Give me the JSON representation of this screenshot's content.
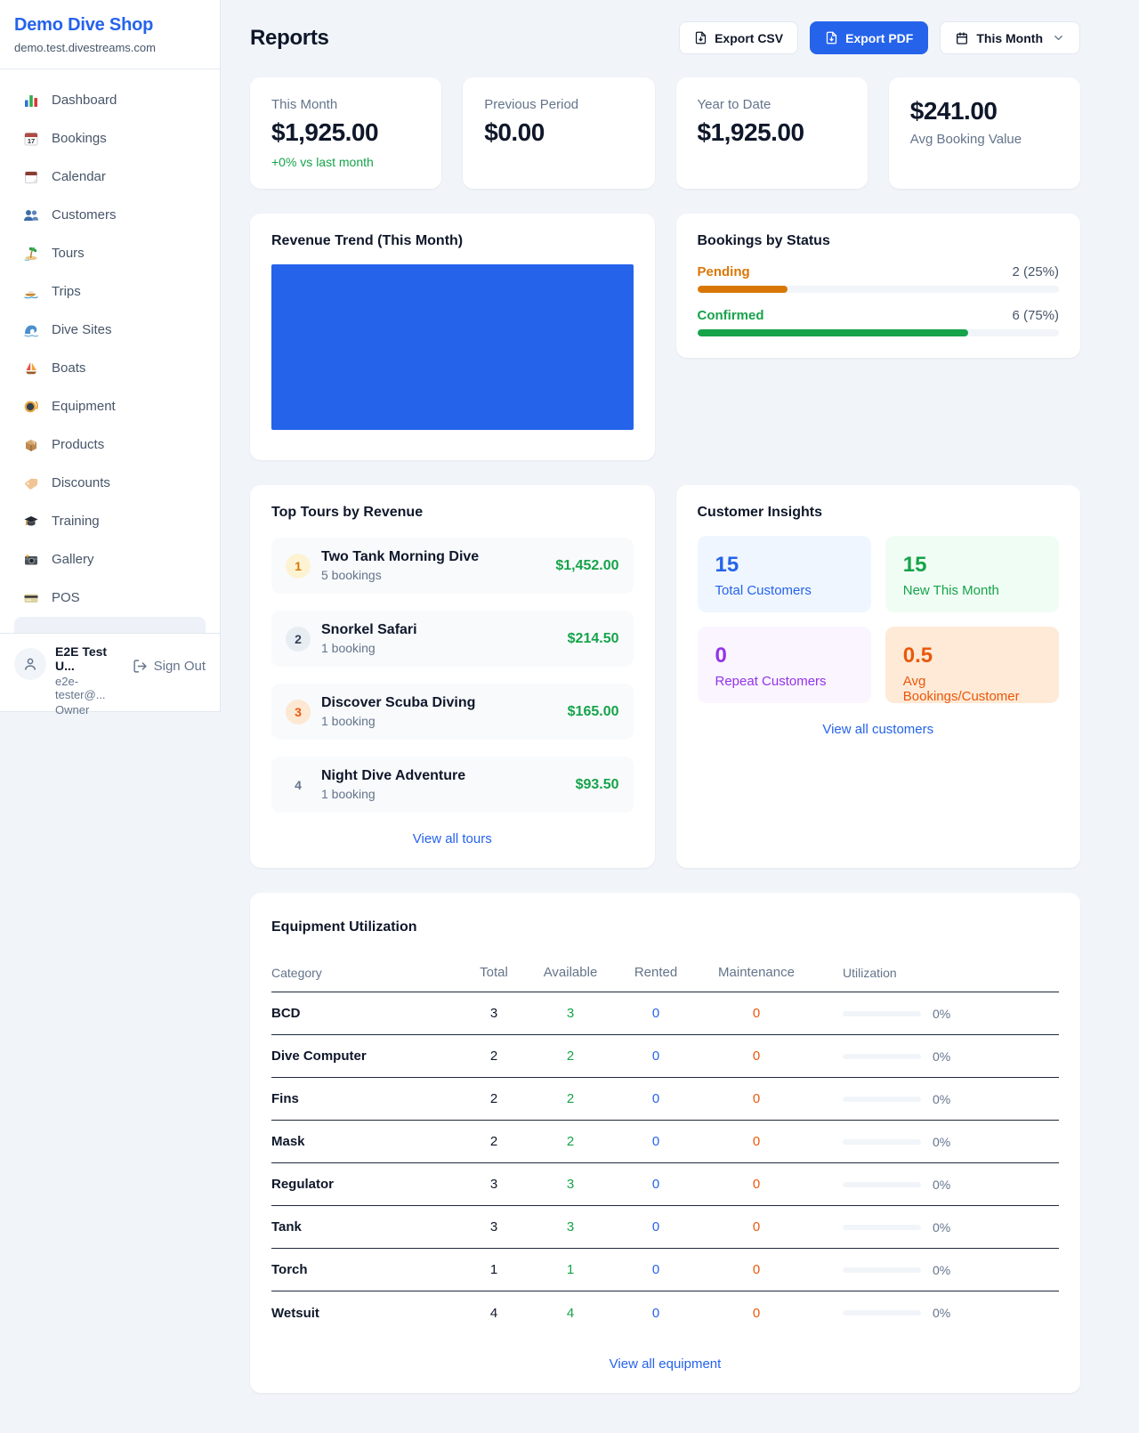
{
  "colors": {
    "accent": "#2563eb",
    "green": "#16a34a",
    "orange": "#ea580c",
    "amber": "#d97706",
    "purple": "#9333ea"
  },
  "sidebar": {
    "shop_name": "Demo Dive Shop",
    "shop_domain": "demo.test.divestreams.com",
    "nav": [
      {
        "icon": "bar-chart",
        "label": "Dashboard"
      },
      {
        "icon": "calendar-date",
        "label": "Bookings"
      },
      {
        "icon": "tear-off-calendar",
        "label": "Calendar"
      },
      {
        "icon": "people",
        "label": "Customers"
      },
      {
        "icon": "desert-island",
        "label": "Tours"
      },
      {
        "icon": "speedboat",
        "label": "Trips"
      },
      {
        "icon": "water-wave",
        "label": "Dive Sites"
      },
      {
        "icon": "sailboat",
        "label": "Boats"
      },
      {
        "icon": "diving-mask",
        "label": "Equipment"
      },
      {
        "icon": "package",
        "label": "Products"
      },
      {
        "icon": "label-tag",
        "label": "Discounts"
      },
      {
        "icon": "graduation-cap",
        "label": "Training"
      },
      {
        "icon": "camera",
        "label": "Gallery"
      },
      {
        "icon": "credit-card",
        "label": "POS"
      }
    ],
    "user": {
      "name": "E2E Test U...",
      "email": "e2e-tester@...",
      "role": "Owner",
      "sign_out_label": "Sign Out"
    }
  },
  "header": {
    "title": "Reports",
    "export_csv_label": "Export CSV",
    "export_pdf_label": "Export PDF",
    "period_label": "This Month"
  },
  "stats": {
    "this_month": {
      "label": "This Month",
      "value": "$1,925.00",
      "delta": "+0% vs last month"
    },
    "previous_period": {
      "label": "Previous Period",
      "value": "$0.00"
    },
    "year_to_date": {
      "label": "Year to Date",
      "value": "$1,925.00"
    },
    "avg_booking": {
      "label": "Avg Booking Value",
      "value": "$241.00"
    }
  },
  "revenue_trend": {
    "title": "Revenue Trend (This Month)"
  },
  "chart_data": {
    "type": "area",
    "title": "Revenue Trend (This Month)",
    "note": "chart renders as a solid filled rectangle; no axes, ticks or labels visible",
    "fill_color": "#2563eb"
  },
  "bookings_by_status": {
    "title": "Bookings by Status",
    "rows": [
      {
        "label": "Pending",
        "value": "2 (25%)",
        "pct": 25,
        "color": "#d97706"
      },
      {
        "label": "Confirmed",
        "value": "6 (75%)",
        "pct": 75,
        "color": "#16a34a"
      }
    ]
  },
  "top_tours": {
    "title": "Top Tours by Revenue",
    "items": [
      {
        "rank": "1",
        "name": "Two Tank Morning Dive",
        "bookings": "5 bookings",
        "amount": "$1,452.00"
      },
      {
        "rank": "2",
        "name": "Snorkel Safari",
        "bookings": "1 booking",
        "amount": "$214.50"
      },
      {
        "rank": "3",
        "name": "Discover Scuba Diving",
        "bookings": "1 booking",
        "amount": "$165.00"
      },
      {
        "rank": "4",
        "name": "Night Dive Adventure",
        "bookings": "1 booking",
        "amount": "$93.50"
      }
    ],
    "link_label": "View all tours"
  },
  "customer_insights": {
    "title": "Customer Insights",
    "tiles": [
      {
        "value": "15",
        "label": "Total Customers"
      },
      {
        "value": "15",
        "label": "New This Month"
      },
      {
        "value": "0",
        "label": "Repeat Customers"
      },
      {
        "value": "0.5",
        "label": "Avg Bookings/Customer"
      }
    ],
    "link_label": "View all customers"
  },
  "equipment": {
    "title": "Equipment Utilization",
    "columns": [
      "Category",
      "Total",
      "Available",
      "Rented",
      "Maintenance",
      "Utilization"
    ],
    "rows": [
      {
        "category": "BCD",
        "total": "3",
        "available": "3",
        "rented": "0",
        "maintenance": "0",
        "utilization": "0%"
      },
      {
        "category": "Dive Computer",
        "total": "2",
        "available": "2",
        "rented": "0",
        "maintenance": "0",
        "utilization": "0%"
      },
      {
        "category": "Fins",
        "total": "2",
        "available": "2",
        "rented": "0",
        "maintenance": "0",
        "utilization": "0%"
      },
      {
        "category": "Mask",
        "total": "2",
        "available": "2",
        "rented": "0",
        "maintenance": "0",
        "utilization": "0%"
      },
      {
        "category": "Regulator",
        "total": "3",
        "available": "3",
        "rented": "0",
        "maintenance": "0",
        "utilization": "0%"
      },
      {
        "category": "Tank",
        "total": "3",
        "available": "3",
        "rented": "0",
        "maintenance": "0",
        "utilization": "0%"
      },
      {
        "category": "Torch",
        "total": "1",
        "available": "1",
        "rented": "0",
        "maintenance": "0",
        "utilization": "0%"
      },
      {
        "category": "Wetsuit",
        "total": "4",
        "available": "4",
        "rented": "0",
        "maintenance": "0",
        "utilization": "0%"
      }
    ],
    "link_label": "View all equipment"
  }
}
